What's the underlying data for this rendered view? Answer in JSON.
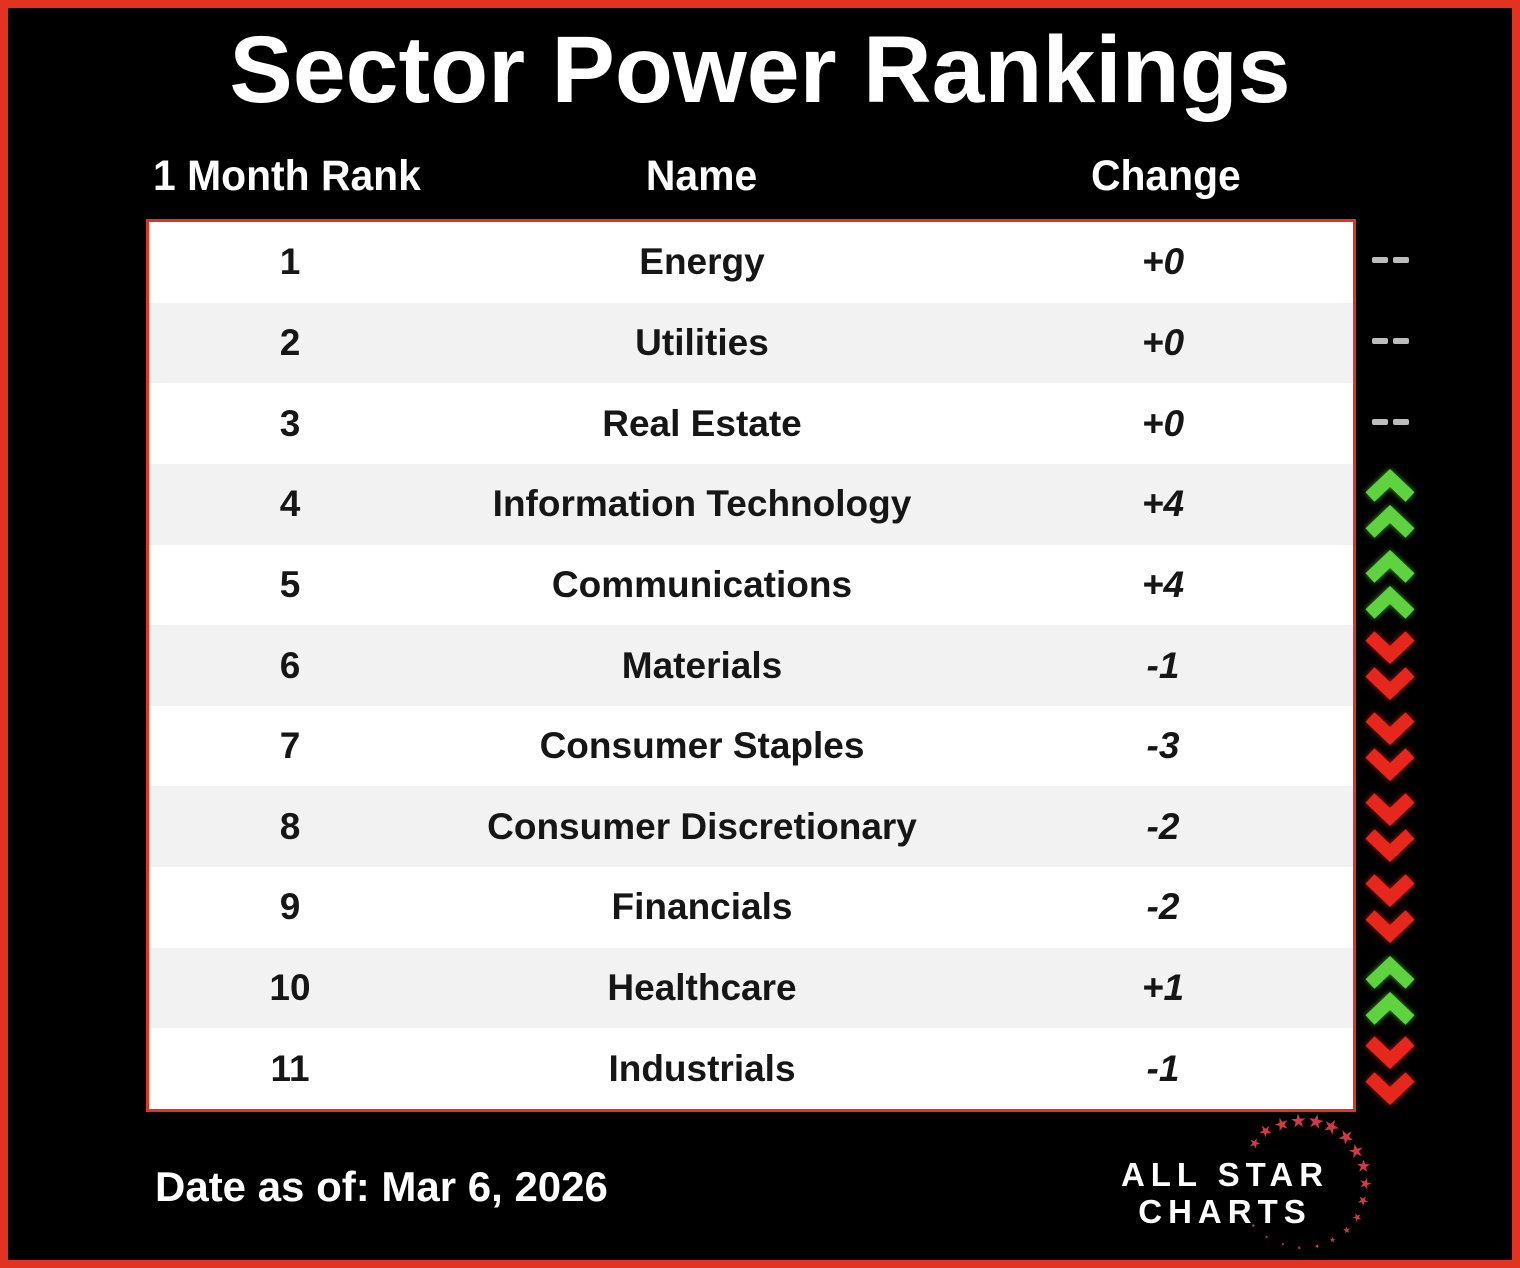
{
  "title": "Sector Power Rankings",
  "chart_data": {
    "type": "table",
    "title": "Sector Power Rankings",
    "columns": [
      "1 Month Rank",
      "Name",
      "Change"
    ],
    "rows": [
      {
        "rank": "1",
        "name": "Energy",
        "change": "+0",
        "direction": "flat"
      },
      {
        "rank": "2",
        "name": "Utilities",
        "change": "+0",
        "direction": "flat"
      },
      {
        "rank": "3",
        "name": "Real Estate",
        "change": "+0",
        "direction": "flat"
      },
      {
        "rank": "4",
        "name": "Information Technology",
        "change": "+4",
        "direction": "up"
      },
      {
        "rank": "5",
        "name": "Communications",
        "change": "+4",
        "direction": "up"
      },
      {
        "rank": "6",
        "name": "Materials",
        "change": "-1",
        "direction": "down"
      },
      {
        "rank": "7",
        "name": "Consumer Staples",
        "change": "-3",
        "direction": "down"
      },
      {
        "rank": "8",
        "name": "Consumer Discretionary",
        "change": "-2",
        "direction": "down"
      },
      {
        "rank": "9",
        "name": "Financials",
        "change": "-2",
        "direction": "down"
      },
      {
        "rank": "10",
        "name": "Healthcare",
        "change": "+1",
        "direction": "up"
      },
      {
        "rank": "11",
        "name": "Industrials",
        "change": "-1",
        "direction": "down"
      }
    ]
  },
  "footer": {
    "date_text": "Date as of: Mar 6, 2026"
  },
  "logo": {
    "line1": "ALL STAR",
    "line2": "CHARTS"
  },
  "colors": {
    "accent_red": "#e23322",
    "row_bg": "#ffffff",
    "row_alt": "#f2f2f2",
    "text_dark": "#161616",
    "up_green": "#5fd33f",
    "down_red": "#e8271c",
    "flat_gray": "#bdbdbd",
    "star_red": "#d13a45",
    "title_white": "#ffffff"
  }
}
